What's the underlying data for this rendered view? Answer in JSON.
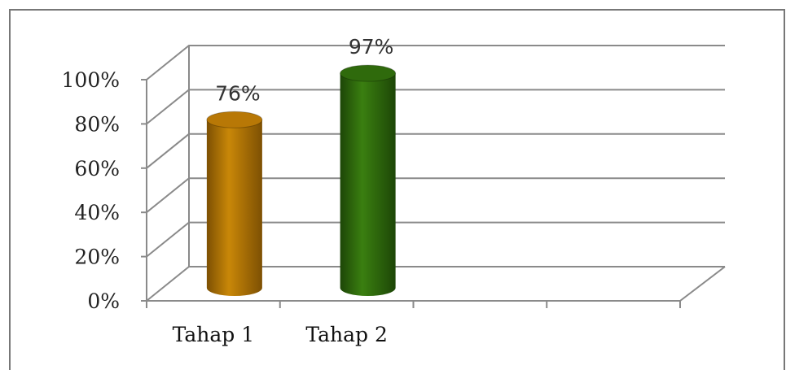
{
  "chart_data": {
    "type": "bar",
    "categories": [
      "Tahap 1",
      "Tahap 2"
    ],
    "values": [
      76,
      97
    ],
    "data_labels": [
      "76%",
      "97%"
    ],
    "ylim": [
      0,
      100
    ],
    "yticks": [
      0,
      20,
      40,
      60,
      80,
      100
    ],
    "ytick_labels": [
      "0%",
      "20%",
      "40%",
      "60%",
      "80%",
      "100%"
    ],
    "slots": 4,
    "bar_colors": [
      "#b87806",
      "#2f6a0c"
    ],
    "grid": true,
    "three_d": true,
    "bar_shape": "cylinder",
    "title": "",
    "xlabel": "",
    "ylabel": ""
  }
}
